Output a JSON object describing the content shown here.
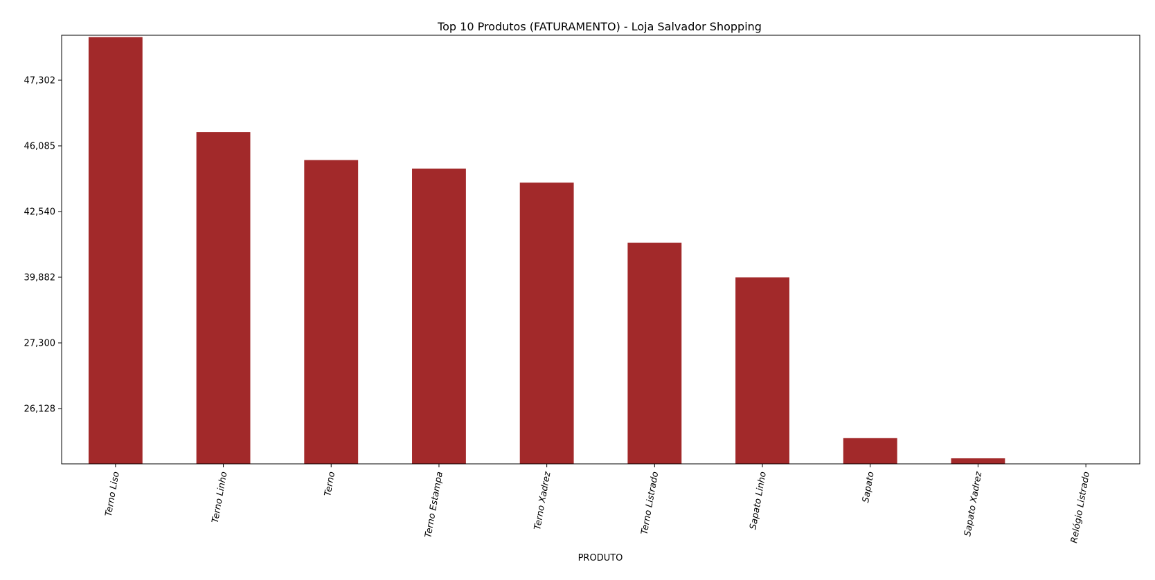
{
  "chart_data": {
    "type": "bar",
    "title": "Top 10 Produtos (FATURAMENTO) - Loja Salvador Shopping",
    "xlabel": "PRODUTO",
    "ylabel": "",
    "bar_color": "#a2292a",
    "y_ticks": [
      "26,128",
      "27,300",
      "39,882",
      "42,540",
      "46,085",
      "47,302"
    ],
    "categories": [
      "Terno Liso",
      "Terno Linho",
      "Terno",
      "Terno Estampa",
      "Terno Xadrez",
      "Terno Listrado",
      "Sapato Linho",
      "Sapato",
      "Sapato Xadrez",
      "Relógio Listrado"
    ],
    "values": [
      48100,
      46340,
      45320,
      44860,
      44100,
      41280,
      39840,
      25600,
      25240,
      25100
    ],
    "grid": false,
    "legend": "none"
  }
}
